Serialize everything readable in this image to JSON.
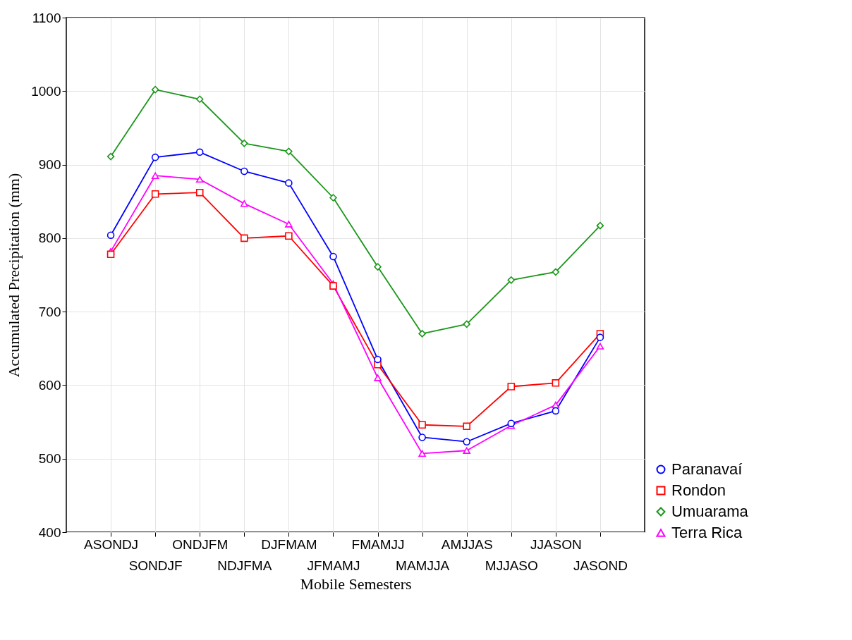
{
  "chart_data": {
    "type": "line",
    "xlabel": "Mobile Semesters",
    "ylabel": "Accumulated Precipitation (mm)",
    "categories": [
      "ASONDJ",
      "SONDJF",
      "ONDJFM",
      "NDJFMA",
      "DJFMAM",
      "JFMAMJ",
      "FMAMJJ",
      "MAMJJA",
      "AMJJAS",
      "MJJASO",
      "JJASON",
      "JASOND"
    ],
    "series": [
      {
        "name": "Paranavaí",
        "color": "#0000ff",
        "marker": "circle",
        "values": [
          804,
          910,
          917,
          891,
          875,
          775,
          635,
          529,
          523,
          548,
          565,
          665
        ]
      },
      {
        "name": "Rondon",
        "color": "#ff0000",
        "marker": "square",
        "values": [
          778,
          860,
          862,
          800,
          803,
          735,
          628,
          546,
          544,
          598,
          603,
          670
        ]
      },
      {
        "name": "Umuarama",
        "color": "#1a961a",
        "marker": "diamond",
        "values": [
          911,
          1002,
          989,
          929,
          918,
          855,
          761,
          670,
          683,
          743,
          754,
          817
        ]
      },
      {
        "name": "Terra Rica",
        "color": "#ff00ff",
        "marker": "triangle",
        "values": [
          782,
          885,
          880,
          847,
          819,
          738,
          610,
          507,
          511,
          545,
          573,
          653
        ]
      }
    ],
    "ylim": [
      400,
      1100
    ],
    "yticks": [
      400,
      500,
      600,
      700,
      800,
      900,
      1000,
      1100
    ],
    "grid": true,
    "legend": "bottom right",
    "line_style": "solid"
  }
}
